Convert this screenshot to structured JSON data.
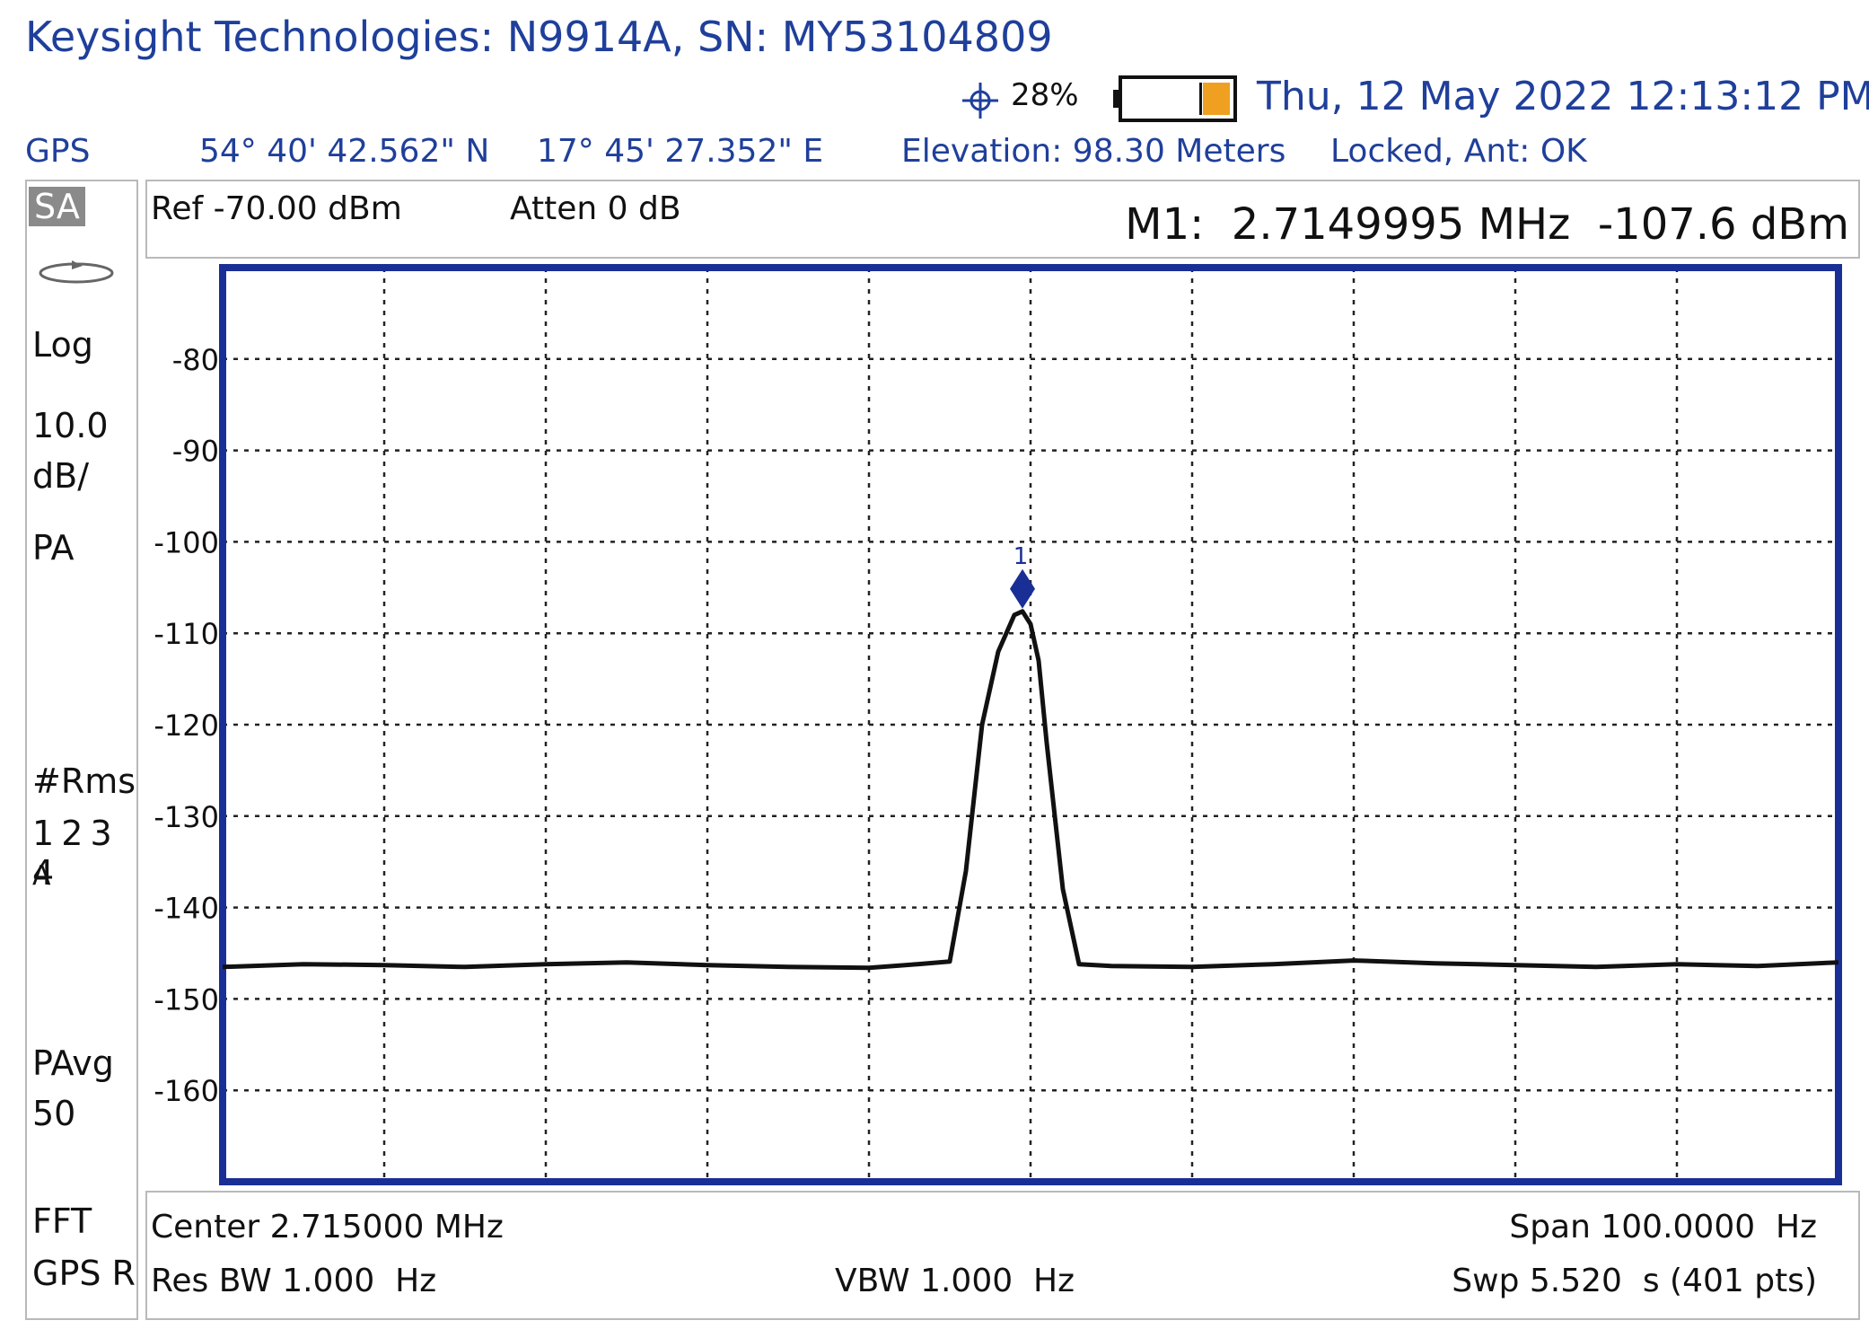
{
  "header": {
    "title": "Keysight Technologies: N9914A, SN: MY53104809",
    "gps_fix_icon": "crosshair-icon",
    "gps_percent": "28%",
    "battery_icon": "battery-icon",
    "datetime": "Thu, 12 May 2022 12:13:12 PM"
  },
  "gps": {
    "label": "GPS",
    "latitude": "54° 40' 42.562\" N",
    "longitude": "17° 45' 27.352\" E",
    "elevation": "Elevation: 98.30 Meters",
    "lock": "Locked, Ant: OK"
  },
  "left_panel": {
    "mode": "SA",
    "mode_icon": "sweep-icon",
    "scale_type": "Log",
    "scale_value": "10.0",
    "scale_unit": "dB/",
    "preamp": "PA",
    "detector": "#Rms",
    "traces": "1 2 3 4",
    "trace_mode": "A",
    "avg_label": "PAvg",
    "avg_count": "50",
    "sweep_type": "FFT",
    "gps_ref": "GPS R"
  },
  "info_top": {
    "ref": "Ref -70.00 dBm",
    "atten": "Atten 0 dB",
    "marker_readout": "M1:  2.7149995 MHz  -107.6 dBm"
  },
  "info_bottom": {
    "center": "Center 2.715000 MHz",
    "span": "Span 100.0000  Hz",
    "res_bw": "Res BW 1.000  Hz",
    "vbw": "VBW 1.000  Hz",
    "sweep": "Swp 5.520  s (401 pts)"
  },
  "chart_data": {
    "type": "line",
    "xlabel": "",
    "ylabel": "",
    "ylim": [
      -170,
      -70
    ],
    "xlim": [
      2714950,
      2715050
    ],
    "y_ticks": [
      -80,
      -90,
      -100,
      -110,
      -120,
      -130,
      -140,
      -150,
      -160
    ],
    "y_tick_labels": [
      "-80",
      "-90",
      "-100",
      "-110",
      "-120",
      "-130",
      "-140",
      "-150",
      "-160"
    ],
    "grid": true,
    "colors": {
      "trace": "#111111",
      "frame": "#1a2f95",
      "marker": "#1a2f95",
      "grid": "#222222"
    },
    "series": [
      {
        "x": [
          2714950,
          2714955,
          2714960,
          2714965,
          2714970,
          2714975,
          2714980,
          2714985,
          2714990,
          2714993,
          2714995,
          2714996,
          2714997,
          2714998,
          2714999,
          2714999.5,
          2715000,
          2715000.5,
          2715001,
          2715002,
          2715003,
          2715004,
          2715005,
          2715010,
          2715015,
          2715020,
          2715025,
          2715030,
          2715035,
          2715040,
          2715045,
          2715050
        ],
        "values": [
          -146.5,
          -146.2,
          -146.3,
          -146.5,
          -146.2,
          -146.0,
          -146.3,
          -146.5,
          -146.6,
          -146.2,
          -145.9,
          -136,
          -120,
          -112,
          -108,
          -107.6,
          -109,
          -113,
          -122,
          -138,
          -146.2,
          -146.3,
          -146.4,
          -146.5,
          -146.2,
          -145.8,
          -146.1,
          -146.3,
          -146.5,
          -146.2,
          -146.4,
          -146.0
        ]
      }
    ],
    "markers": [
      {
        "label": "1",
        "x": 2714999.5,
        "y": -107.6
      }
    ]
  }
}
